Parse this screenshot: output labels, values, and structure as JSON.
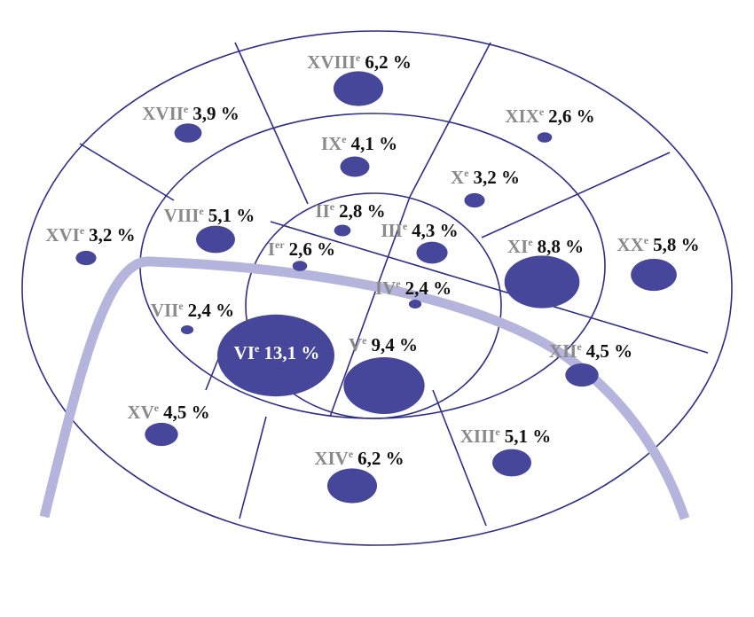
{
  "chart_data": {
    "type": "bubble-map",
    "categories": [
      "I",
      "II",
      "III",
      "IV",
      "V",
      "VI",
      "VII",
      "VIII",
      "IX",
      "X",
      "XI",
      "XII",
      "XIII",
      "XIV",
      "XV",
      "XVI",
      "XVII",
      "XVIII",
      "XIX",
      "XX"
    ],
    "suffixes": [
      "er",
      "e",
      "e",
      "e",
      "e",
      "e",
      "e",
      "e",
      "e",
      "e",
      "e",
      "e",
      "e",
      "e",
      "e",
      "e",
      "e",
      "e",
      "e",
      "e"
    ],
    "values": [
      2.6,
      2.8,
      4.3,
      2.4,
      9.4,
      13.1,
      2.4,
      5.1,
      4.1,
      3.2,
      8.8,
      4.5,
      5.1,
      6.2,
      4.5,
      3.2,
      3.9,
      6.2,
      2.6,
      5.8
    ],
    "value_labels": [
      "2,6 %",
      "2,8 %",
      "4,3 %",
      "2,4 %",
      "9,4 %",
      "13,1 %",
      "2,4 %",
      "5,1 %",
      "4,1 %",
      "3,2 %",
      "8,8 %",
      "4,5 %",
      "5,1 %",
      "6,2 %",
      "4,5 %",
      "3,2 %",
      "3,9 %",
      "6,2 %",
      "2,6 %",
      "5,8 %"
    ],
    "color": "#46469a"
  }
}
